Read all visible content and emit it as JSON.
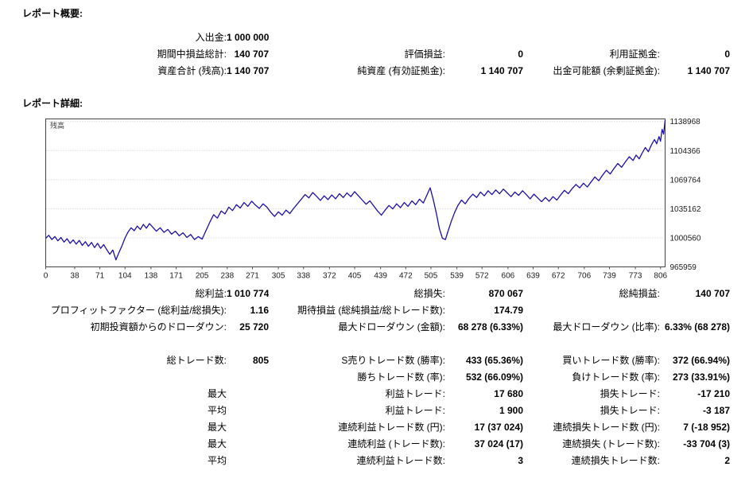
{
  "summary": {
    "title": "レポート概要:",
    "rows": [
      {
        "c": [
          "入出金:",
          "1 000 000",
          "",
          "",
          "",
          ""
        ]
      },
      {
        "c": [
          "期間中損益総計:",
          "140 707",
          "評価損益:",
          "0",
          "利用証拠金:",
          "0"
        ]
      },
      {
        "c": [
          "資産合計 (残高):",
          "1 140 707",
          "純資産 (有効証拠金):",
          "1 140 707",
          "出金可能額 (余剰証拠金):",
          "1 140 707"
        ]
      }
    ]
  },
  "detail": {
    "title": "レポート詳細:"
  },
  "stats": {
    "rows": [
      {
        "c": [
          "総利益:",
          "1 010 774",
          "総損失:",
          "870 067",
          "総純損益:",
          "140 707"
        ]
      },
      {
        "c": [
          "プロフィットファクター (総利益/総損失):",
          "1.16",
          "期待損益 (総純損益/総トレード数):",
          "174.79",
          "",
          ""
        ]
      },
      {
        "c": [
          "初期投資額からのドローダウン:",
          "25 720",
          "最大ドローダウン (金額):",
          "68 278 (6.33%)",
          "最大ドローダウン (比率):",
          "6.33% (68 278)"
        ]
      },
      {
        "c": [
          "",
          "",
          "",
          "",
          "",
          ""
        ]
      },
      {
        "c": [
          "総トレード数:",
          "805",
          "S売りトレード数 (勝率):",
          "433 (65.36%)",
          "買いトレード数 (勝率):",
          "372 (66.94%)"
        ]
      },
      {
        "c": [
          "",
          "",
          "勝ちトレード数 (率):",
          "532 (66.09%)",
          "負けトレード数 (率):",
          "273 (33.91%)"
        ]
      },
      {
        "c": [
          "最大",
          "",
          "利益トレード:",
          "17 680",
          "損失トレード:",
          "-17 210"
        ]
      },
      {
        "c": [
          "平均",
          "",
          "利益トレード:",
          "1 900",
          "損失トレード:",
          "-3 187"
        ]
      },
      {
        "c": [
          "最大",
          "",
          "連続利益トレード数 (円):",
          "17 (37 024)",
          "連続損失トレード数 (円):",
          "7 (-18 952)"
        ]
      },
      {
        "c": [
          "最大",
          "",
          "連続利益 (トレード数):",
          "37 024 (17)",
          "連続損失 (トレード数):",
          "-33 704 (3)"
        ]
      },
      {
        "c": [
          "平均",
          "",
          "連続利益トレード数:",
          "3",
          "連続損失トレード数:",
          "2"
        ]
      }
    ]
  },
  "chart_data": {
    "type": "line",
    "title": "残高",
    "legend_position": "top-left",
    "grid": "horizontal-dotted",
    "xlim": [
      0,
      812
    ],
    "ylim": [
      965959,
      1142000
    ],
    "y_ticks": [
      965959,
      1000560,
      1035162,
      1069764,
      1104366,
      1138968
    ],
    "x_ticks": [
      0,
      38,
      71,
      104,
      138,
      171,
      205,
      238,
      271,
      305,
      338,
      372,
      405,
      439,
      472,
      505,
      539,
      572,
      606,
      639,
      672,
      706,
      739,
      773,
      806
    ],
    "colors": {
      "line": "#1c0fa8",
      "grid": "#c9c9c9",
      "border": "#444444"
    },
    "series": [
      {
        "name": "残高",
        "x": [
          0,
          4,
          8,
          12,
          16,
          20,
          24,
          28,
          32,
          36,
          40,
          44,
          48,
          52,
          56,
          60,
          64,
          68,
          72,
          76,
          80,
          84,
          88,
          92,
          96,
          100,
          104,
          108,
          112,
          116,
          120,
          124,
          128,
          132,
          136,
          140,
          145,
          150,
          155,
          160,
          165,
          170,
          175,
          180,
          185,
          190,
          195,
          200,
          205,
          210,
          215,
          220,
          225,
          230,
          235,
          240,
          245,
          250,
          255,
          260,
          265,
          270,
          275,
          280,
          285,
          290,
          295,
          300,
          305,
          310,
          315,
          320,
          325,
          330,
          335,
          340,
          345,
          350,
          355,
          360,
          365,
          370,
          375,
          380,
          385,
          390,
          395,
          400,
          405,
          410,
          415,
          420,
          425,
          430,
          435,
          440,
          445,
          450,
          455,
          460,
          465,
          470,
          475,
          480,
          485,
          490,
          495,
          500,
          504,
          508,
          512,
          516,
          520,
          524,
          528,
          532,
          536,
          540,
          545,
          550,
          555,
          560,
          565,
          570,
          575,
          580,
          585,
          590,
          595,
          600,
          605,
          610,
          615,
          620,
          625,
          630,
          635,
          640,
          645,
          650,
          655,
          660,
          665,
          670,
          675,
          680,
          685,
          690,
          695,
          700,
          705,
          710,
          715,
          720,
          725,
          730,
          735,
          740,
          745,
          750,
          755,
          760,
          765,
          770,
          774,
          778,
          782,
          786,
          790,
          794,
          798,
          801,
          804,
          806,
          808,
          810,
          812
        ],
        "y": [
          1000000,
          1003500,
          998500,
          1002000,
          997000,
          1001000,
          995500,
          999500,
          994000,
          998000,
          993000,
          997500,
          991500,
          996000,
          990500,
          995000,
          989000,
          994000,
          988000,
          992500,
          986500,
          981000,
          986000,
          974280,
          983000,
          991000,
          1000500,
          1007500,
          1012500,
          1009000,
          1014500,
          1010500,
          1016500,
          1012000,
          1017500,
          1013500,
          1008500,
          1012500,
          1007000,
          1010500,
          1005000,
          1008500,
          1003000,
          1006500,
          1001000,
          1004500,
          998500,
          1002000,
          999000,
          1009000,
          1019000,
          1028000,
          1024000,
          1032500,
          1029000,
          1037000,
          1033000,
          1040000,
          1036000,
          1042500,
          1038000,
          1044000,
          1039500,
          1035500,
          1041000,
          1037000,
          1031000,
          1026000,
          1031500,
          1027500,
          1033500,
          1029500,
          1035500,
          1041000,
          1046500,
          1052000,
          1048000,
          1054500,
          1050000,
          1045000,
          1050500,
          1046000,
          1051500,
          1047000,
          1053000,
          1048500,
          1054000,
          1049500,
          1055500,
          1050500,
          1045500,
          1040500,
          1044500,
          1038500,
          1032500,
          1027500,
          1033500,
          1039000,
          1035000,
          1041000,
          1036500,
          1042500,
          1038000,
          1044500,
          1040000,
          1046500,
          1042000,
          1052000,
          1060000,
          1046000,
          1030000,
          1012000,
          1000000,
          998500,
          1010000,
          1021000,
          1030500,
          1038500,
          1045500,
          1041000,
          1047500,
          1052500,
          1048500,
          1055000,
          1050500,
          1056500,
          1052000,
          1057500,
          1053000,
          1058500,
          1054000,
          1049500,
          1055000,
          1051000,
          1056500,
          1052000,
          1047000,
          1052500,
          1048000,
          1043500,
          1048500,
          1044000,
          1049500,
          1045500,
          1051500,
          1057000,
          1053000,
          1059000,
          1064000,
          1060000,
          1065500,
          1061000,
          1067000,
          1073000,
          1068500,
          1075000,
          1081000,
          1076500,
          1083000,
          1089000,
          1084500,
          1091000,
          1097000,
          1092500,
          1099000,
          1094500,
          1101500,
          1108000,
          1103000,
          1111000,
          1117500,
          1112500,
          1121000,
          1115500,
          1129500,
          1124000,
          1140707
        ]
      }
    ]
  }
}
